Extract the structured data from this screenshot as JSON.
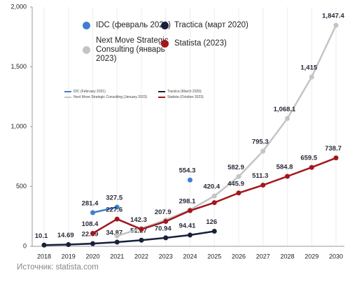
{
  "chart_data": {
    "type": "line",
    "categories": [
      "2018",
      "2019",
      "2020",
      "2021",
      "2022",
      "2023",
      "2024",
      "2025",
      "2026",
      "2027",
      "2028",
      "2029",
      "2030"
    ],
    "ylim": [
      0,
      2000
    ],
    "yticks": [
      0,
      500,
      {
        "value": 1000,
        "label": "1,000"
      },
      {
        "value": 1500,
        "label": "1,500"
      },
      {
        "value": 2000,
        "label": "2,000"
      }
    ],
    "grid": true,
    "inner_legend": [
      "IDC (February 2021)",
      "Tractica (March 2020)",
      "Next Move Strategic Consulting (January 2023)",
      "Statista (October 2023)"
    ],
    "source": "Источник: statista.com",
    "series": [
      {
        "name": "IDC (февраль 2021)",
        "color": "#3f7fd0",
        "values": [
          null,
          null,
          281.4,
          327.5,
          null,
          null,
          554.3,
          null,
          null,
          null,
          null,
          null,
          null
        ],
        "value_labels": [
          null,
          null,
          "281.4",
          "327.5",
          null,
          null,
          "554.3",
          null,
          null,
          null,
          null,
          null,
          null
        ]
      },
      {
        "name": "Tractica (март 2020)",
        "color": "#18213a",
        "values": [
          10.1,
          14.69,
          22.59,
          34.87,
          51.27,
          70.94,
          94.41,
          126,
          null,
          null,
          null,
          null,
          null
        ],
        "value_labels": [
          "10.1",
          "14.69",
          "22.59",
          "34.87",
          "51.27",
          "70.94",
          "94.41",
          "126",
          null,
          null,
          null,
          null,
          null
        ]
      },
      {
        "name": "Next Move Strategic Consulting (январь 2023)",
        "color": "#c4c4c4",
        "values": [
          null,
          null,
          null,
          87,
          150,
          220,
          305,
          420.4,
          582.9,
          795.3,
          1068.1,
          1415,
          1847.4
        ],
        "value_labels": [
          null,
          null,
          null,
          null,
          null,
          null,
          null,
          "420.4",
          "582.9",
          "795.3",
          "1,068.1",
          "1,415",
          "1,847.4"
        ]
      },
      {
        "name": "Statista (2023)",
        "color": "#a3161e",
        "values": [
          null,
          null,
          108.4,
          227.6,
          142.3,
          207.9,
          298.1,
          365,
          445.9,
          511.3,
          584.8,
          659.5,
          738.7
        ],
        "value_labels": [
          null,
          null,
          "108.4",
          "227.6",
          "142.3",
          "207.9",
          "298.1",
          null,
          "445.9",
          "511.3",
          "584.8",
          "659.5",
          "738.7"
        ]
      }
    ]
  }
}
